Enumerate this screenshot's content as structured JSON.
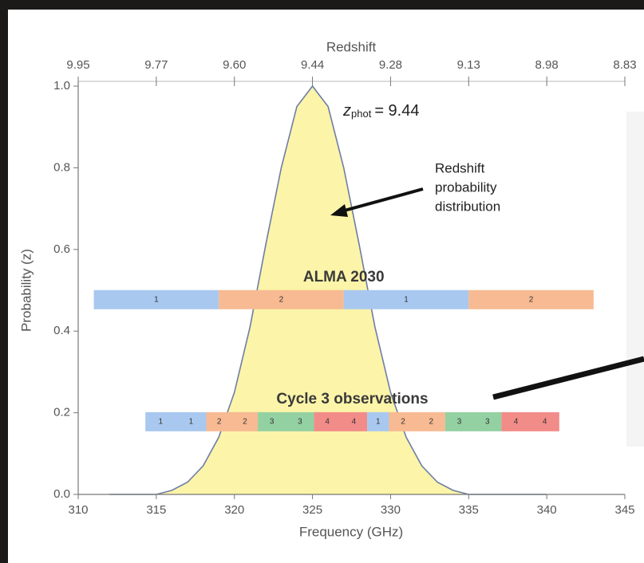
{
  "chart_data": {
    "type": "line",
    "x_label": "Frequency (GHz)",
    "y_label": "Probability (z)",
    "x2_label": "Redshift",
    "xlim": [
      310,
      345
    ],
    "ylim": [
      0,
      1
    ],
    "xticks": [
      310,
      315,
      320,
      325,
      330,
      335,
      340,
      345
    ],
    "yticks": [
      {
        "value": 0,
        "label": "0.0"
      },
      0.2,
      0.4,
      0.6,
      0.8,
      {
        "value": 1,
        "label": "1.0"
      }
    ],
    "x2ticks": [
      {
        "value": 310,
        "label": "9.95"
      },
      {
        "value": 315,
        "label": "9.77"
      },
      {
        "value": 320,
        "label": "9.60"
      },
      {
        "value": 325,
        "label": "9.44"
      },
      {
        "value": 330,
        "label": "9.28"
      },
      {
        "value": 335,
        "label": "9.13"
      },
      {
        "value": 340,
        "label": "8.98"
      },
      {
        "value": 345,
        "label": "8.83"
      }
    ],
    "x": [
      312,
      313,
      314,
      315,
      316,
      317,
      318,
      319,
      320,
      321,
      322,
      323,
      324,
      325,
      326,
      327,
      328,
      329,
      330,
      331,
      332,
      333,
      334,
      335,
      336,
      337,
      338,
      339,
      340
    ],
    "series": [
      {
        "color": "#6d7ea6",
        "fill": "#fcf4a8",
        "values": [
          0,
          0,
          0,
          0,
          0.01,
          0.03,
          0.07,
          0.14,
          0.25,
          0.41,
          0.61,
          0.8,
          0.95,
          1,
          0.95,
          0.8,
          0.61,
          0.41,
          0.25,
          0.14,
          0.07,
          0.03,
          0.01,
          0,
          0,
          0,
          0,
          0,
          0
        ]
      }
    ],
    "peak_label": {
      "symbol": "z",
      "subscript": "phot",
      "text": "= 9.44"
    },
    "annotation": [
      "Redshift",
      "probability",
      "distribution"
    ],
    "bands": [
      {
        "label": "ALMA 2030",
        "y": 0.477,
        "segments": [
          {
            "start": 311,
            "end": 319,
            "labels": [
              "1"
            ],
            "color": "#a9c8ef"
          },
          {
            "start": 319,
            "end": 327,
            "labels": [
              "2"
            ],
            "color": "#f7ba92"
          },
          {
            "start": 327,
            "end": 335,
            "labels": [
              "1"
            ],
            "color": "#a9c8ef"
          },
          {
            "start": 335,
            "end": 343,
            "labels": [
              "2"
            ],
            "color": "#f7ba92"
          }
        ]
      },
      {
        "label": "Cycle 3 observations",
        "y": 0.178,
        "segments": [
          {
            "start": 314.3,
            "end": 318.2,
            "labels": [
              "1",
              "1"
            ],
            "color": "#a9c8ef"
          },
          {
            "start": 318.2,
            "end": 321.5,
            "labels": [
              "2",
              "2"
            ],
            "color": "#f7ba92"
          },
          {
            "start": 321.5,
            "end": 325.1,
            "labels": [
              "3",
              "3"
            ],
            "color": "#93d1a2"
          },
          {
            "start": 325.1,
            "end": 328.5,
            "labels": [
              "4",
              "4"
            ],
            "color": "#f28c89"
          },
          {
            "start": 328.5,
            "end": 329.9,
            "labels": [
              "1"
            ],
            "color": "#a9c8ef"
          },
          {
            "start": 329.9,
            "end": 333.5,
            "labels": [
              "2",
              "2"
            ],
            "color": "#f7ba92"
          },
          {
            "start": 333.5,
            "end": 337.1,
            "labels": [
              "3",
              "3"
            ],
            "color": "#93d1a2"
          },
          {
            "start": 337.1,
            "end": 340.8,
            "labels": [
              "4",
              "4"
            ],
            "color": "#f28c89"
          }
        ]
      }
    ]
  }
}
